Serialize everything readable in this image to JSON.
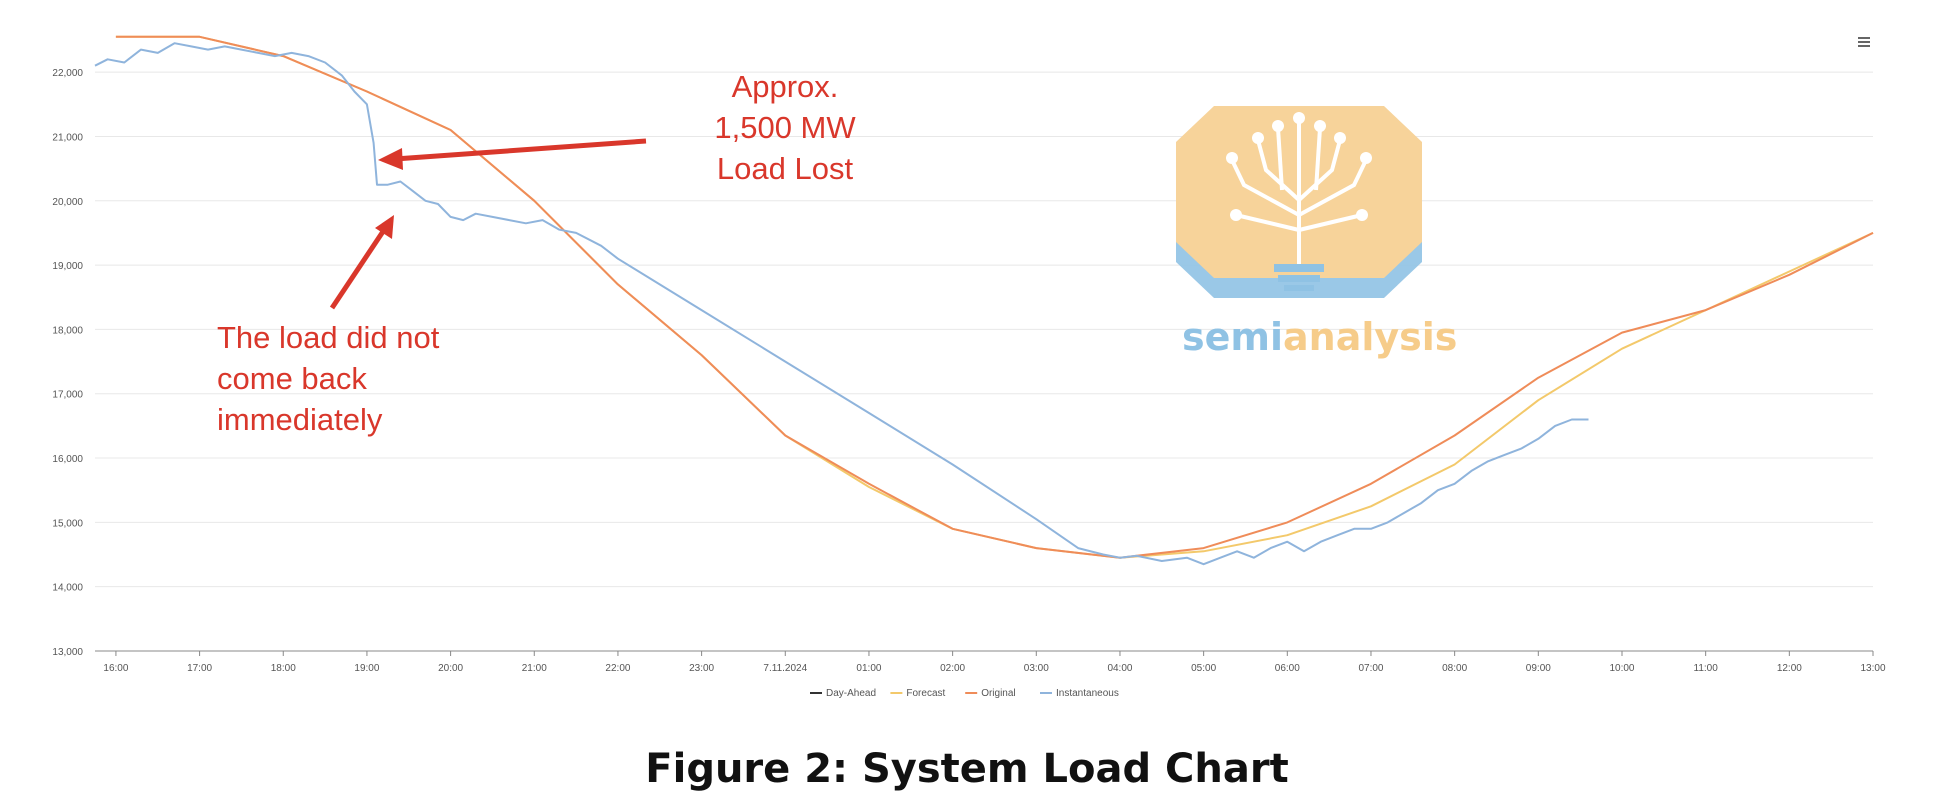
{
  "chart_data": {
    "type": "line",
    "title": "",
    "xlabel": "",
    "ylabel": "",
    "ylim": [
      13000,
      22500
    ],
    "yticks": [
      13000,
      14000,
      15000,
      16000,
      17000,
      18000,
      19000,
      20000,
      21000,
      22000
    ],
    "ytick_labels": [
      "13,000",
      "14,000",
      "15,000",
      "16,000",
      "17,000",
      "18,000",
      "19,000",
      "20,000",
      "21,000",
      "22,000"
    ],
    "xlim": [
      15.75,
      37.0
    ],
    "xticks": [
      16,
      17,
      18,
      19,
      20,
      21,
      22,
      23,
      24,
      25,
      26,
      27,
      28,
      29,
      30,
      31,
      32,
      33,
      34,
      35,
      36,
      37
    ],
    "xtick_labels": [
      "16:00",
      "17:00",
      "18:00",
      "19:00",
      "20:00",
      "21:00",
      "22:00",
      "23:00",
      "7.11.2024",
      "01:00",
      "02:00",
      "03:00",
      "04:00",
      "05:00",
      "06:00",
      "07:00",
      "08:00",
      "09:00",
      "10:00",
      "11:00",
      "12:00",
      "13:00"
    ],
    "legend": [
      "Day-Ahead",
      "Forecast",
      "Original",
      "Instantaneous"
    ],
    "legend_position": "bottom-center",
    "series": [
      {
        "name": "Forecast",
        "color": "#f3c96b",
        "x": [
          16.0,
          17.0,
          18.0,
          19.0,
          20.0,
          21.0,
          22.0,
          23.0,
          24.0,
          25.0,
          26.0,
          27.0,
          28.0,
          29.0,
          30.0,
          31.0,
          32.0,
          33.0,
          34.0,
          35.0,
          36.0,
          37.0
        ],
        "y": [
          22550,
          22550,
          22250,
          21700,
          21100,
          20000,
          18700,
          17600,
          16350,
          15550,
          14900,
          14600,
          14450,
          14550,
          14800,
          15250,
          15900,
          16900,
          17700,
          18300,
          18900,
          19500
        ]
      },
      {
        "name": "Original",
        "color": "#ef8c59",
        "x": [
          16.0,
          17.0,
          18.0,
          19.0,
          20.0,
          21.0,
          22.0,
          23.0,
          24.0,
          25.0,
          26.0,
          27.0,
          28.0,
          29.0,
          30.0,
          31.0,
          32.0,
          33.0,
          34.0,
          35.0,
          36.0,
          37.0
        ],
        "y": [
          22550,
          22550,
          22250,
          21700,
          21100,
          20000,
          18700,
          17600,
          16350,
          15600,
          14900,
          14600,
          14450,
          14600,
          15000,
          15600,
          16350,
          17250,
          17950,
          18300,
          18850,
          19500
        ]
      },
      {
        "name": "Instantaneous",
        "color": "#8fb4dc",
        "x": [
          15.75,
          15.9,
          16.1,
          16.3,
          16.5,
          16.7,
          16.9,
          17.1,
          17.3,
          17.5,
          17.7,
          17.9,
          18.1,
          18.3,
          18.5,
          18.7,
          18.85,
          19.0,
          19.08,
          19.12,
          19.25,
          19.4,
          19.55,
          19.7,
          19.85,
          20.0,
          20.15,
          20.3,
          20.5,
          20.7,
          20.9,
          21.1,
          21.3,
          21.5,
          21.8,
          22.0,
          23.0,
          24.0,
          25.0,
          26.0,
          27.0,
          27.5,
          27.8,
          28.0,
          28.2,
          28.5,
          28.8,
          29.0,
          29.2,
          29.4,
          29.6,
          29.8,
          30.0,
          30.2,
          30.4,
          30.6,
          30.8,
          31.0,
          31.2,
          31.4,
          31.6,
          31.8,
          32.0,
          32.2,
          32.4,
          32.6,
          32.8,
          33.0,
          33.2,
          33.4,
          33.6
        ],
        "y": [
          22100,
          22200,
          22150,
          22350,
          22300,
          22450,
          22400,
          22350,
          22400,
          22350,
          22300,
          22250,
          22300,
          22250,
          22150,
          21950,
          21700,
          21500,
          20900,
          20250,
          20250,
          20300,
          20150,
          20000,
          19950,
          19750,
          19700,
          19800,
          19750,
          19700,
          19650,
          19700,
          19550,
          19500,
          19300,
          19100,
          18300,
          17500,
          16700,
          15900,
          15050,
          14600,
          14500,
          14450,
          14480,
          14400,
          14450,
          14350,
          14450,
          14550,
          14450,
          14600,
          14700,
          14550,
          14700,
          14800,
          14900,
          14900,
          15000,
          15150,
          15300,
          15500,
          15600,
          15800,
          15950,
          16050,
          16150,
          16300,
          16500,
          16600,
          16600
        ]
      }
    ],
    "annotations": [
      {
        "text_lines": [
          "Approx.",
          "1,500 MW",
          "Load Lost"
        ],
        "points_to": {
          "x": 19.15,
          "y": 20900
        }
      },
      {
        "text_lines": [
          "The load did not",
          "come back",
          "immediately"
        ],
        "points_to": {
          "x": 19.35,
          "y": 19950
        }
      }
    ]
  },
  "caption": "Figure 2: System Load Chart",
  "logo": {
    "text_a": "semi",
    "text_b": "analysis"
  },
  "menu_icon": "hamburger-menu-icon",
  "colors": {
    "annotation": "#d9372b",
    "grid": "#e8e8e8",
    "axis": "#888888"
  }
}
